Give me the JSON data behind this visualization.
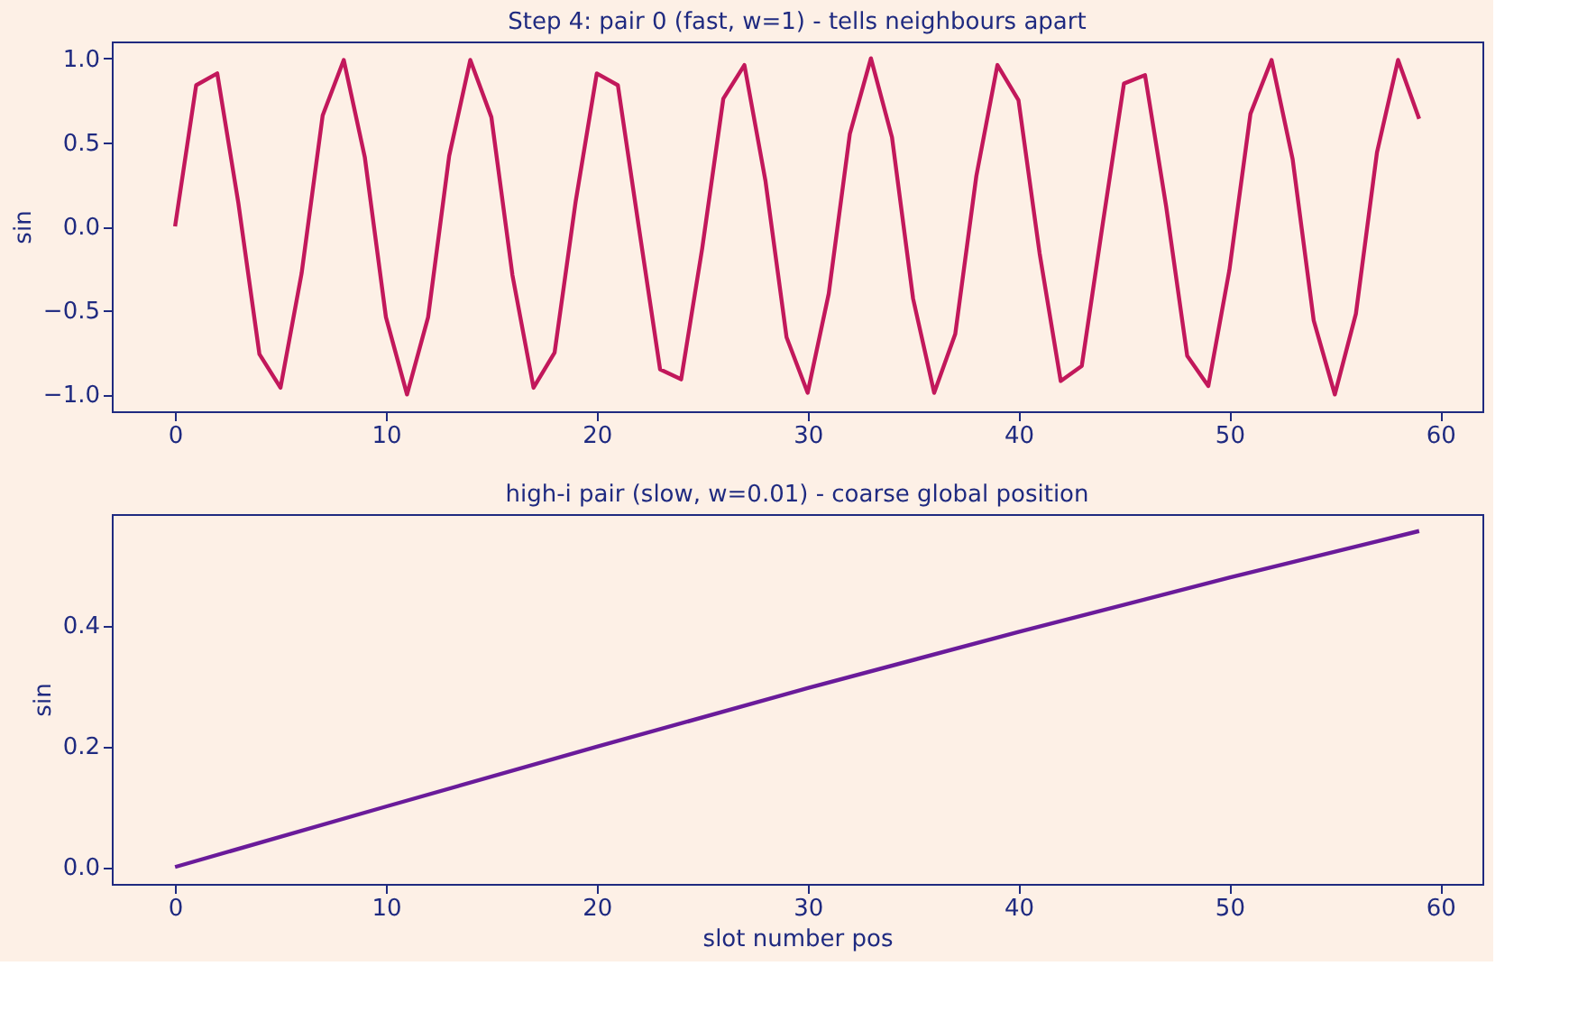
{
  "chart_data": [
    {
      "type": "line",
      "title": "Step 4: pair 0 (fast, w=1) - tells neighbours apart",
      "ylabel": "sin",
      "x": [
        0,
        1,
        2,
        3,
        4,
        5,
        6,
        7,
        8,
        9,
        10,
        11,
        12,
        13,
        14,
        15,
        16,
        17,
        18,
        19,
        20,
        21,
        22,
        23,
        24,
        25,
        26,
        27,
        28,
        29,
        30,
        31,
        32,
        33,
        34,
        35,
        36,
        37,
        38,
        39,
        40,
        41,
        42,
        43,
        44,
        45,
        46,
        47,
        48,
        49,
        50,
        51,
        52,
        53,
        54,
        55,
        56,
        57,
        58,
        59
      ],
      "series": [
        {
          "color": "#c2185b",
          "values": [
            0,
            0.84,
            0.91,
            0.14,
            -0.76,
            -0.96,
            -0.28,
            0.66,
            0.99,
            0.41,
            -0.54,
            -1.0,
            -0.54,
            0.42,
            0.99,
            0.65,
            -0.29,
            -0.96,
            -0.75,
            0.15,
            0.91,
            0.84,
            -0.01,
            -0.85,
            -0.91,
            -0.13,
            0.76,
            0.96,
            0.27,
            -0.66,
            -0.99,
            -0.4,
            0.55,
            1.0,
            0.53,
            -0.43,
            -0.99,
            -0.64,
            0.3,
            0.96,
            0.75,
            -0.16,
            -0.92,
            -0.83,
            0.02,
            0.85,
            0.9,
            0.12,
            -0.77,
            -0.95,
            -0.26,
            0.67,
            0.99,
            0.4,
            -0.56,
            -1.0,
            -0.52,
            0.44,
            0.99,
            0.64
          ]
        }
      ],
      "xlim": [
        -3,
        62
      ],
      "xticks": [
        0,
        10,
        20,
        30,
        40,
        50,
        60
      ],
      "ylim": [
        -1.1,
        1.1
      ],
      "yticks": [
        {
          "value": -1,
          "label": "−1.0"
        },
        {
          "value": -0.5,
          "label": "−0.5"
        },
        {
          "value": 0,
          "label": "0.0"
        },
        {
          "value": 0.5,
          "label": "0.5"
        },
        {
          "value": 1,
          "label": "1.0"
        }
      ],
      "grid": false,
      "marker": "none",
      "line_style": "solid"
    },
    {
      "type": "line",
      "title": "high-i pair (slow, w=0.01) - coarse global position",
      "xlabel": "slot number  pos",
      "ylabel": "sin",
      "x": [
        0,
        10,
        20,
        30,
        40,
        50,
        59
      ],
      "series": [
        {
          "color": "#6a1b9a",
          "values": [
            0,
            0.1,
            0.199,
            0.296,
            0.389,
            0.479,
            0.556
          ]
        }
      ],
      "xlim": [
        -3,
        62
      ],
      "xticks": [
        0,
        10,
        20,
        30,
        40,
        50,
        60
      ],
      "ylim": [
        -0.028,
        0.584
      ],
      "yticks": [
        {
          "value": 0,
          "label": "0.0"
        },
        {
          "value": 0.2,
          "label": "0.2"
        },
        {
          "value": 0.4,
          "label": "0.4"
        }
      ],
      "grid": false,
      "marker": "none",
      "line_style": "solid"
    }
  ]
}
